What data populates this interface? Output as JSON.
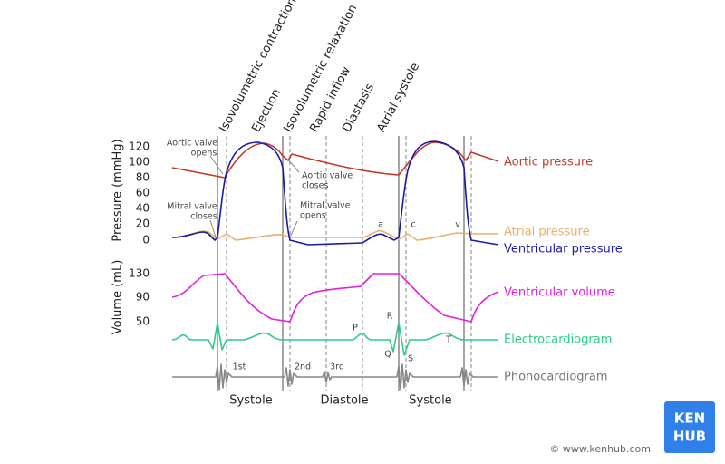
{
  "phases": [
    "Isovolumetric contraction",
    "Ejection",
    "Isovolumetric relaxation",
    "Rapid inflow",
    "Diastasis",
    "Atrial systole"
  ],
  "axes": {
    "pressure": {
      "label": "Pressure (mmHg)",
      "ticks": [
        120,
        100,
        80,
        60,
        40,
        20,
        0
      ]
    },
    "volume": {
      "label": "Volume (mL)",
      "ticks": [
        130,
        90,
        50
      ]
    }
  },
  "valve_events": [
    [
      "Aortic valve",
      "opens"
    ],
    [
      "Mitral valve",
      "closes"
    ],
    [
      "Aortic valve",
      "closes"
    ],
    [
      "Mitral valve",
      "opens"
    ]
  ],
  "pressure_waves": [
    "a",
    "c",
    "v"
  ],
  "ecg_waves": [
    "P",
    "R",
    "Q",
    "S",
    "T"
  ],
  "heart_sounds": [
    "1st",
    "2nd",
    "3rd"
  ],
  "periods": [
    "Systole",
    "Diastole",
    "Systole"
  ],
  "curve_labels": [
    "Aortic pressure",
    "Atrial pressure",
    "Ventricular pressure",
    "Ventricular volume",
    "Electrocardiogram",
    "Phonocardiogram"
  ],
  "logo": [
    "KEN",
    "HUB"
  ],
  "copyright": "© www.kenhub.com"
}
